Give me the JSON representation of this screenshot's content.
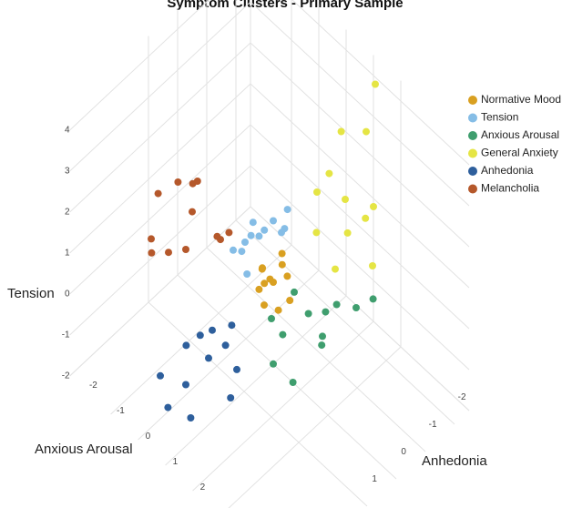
{
  "chart_data": {
    "type": "scatter3d",
    "title": "Symptom Clusters - Primary Sample",
    "xlabel": "Anxious Arousal",
    "ylabel": "Anhedonia",
    "zlabel": "Tension",
    "xticks": [
      -2,
      -1,
      0,
      1,
      2
    ],
    "yticks": [
      -2,
      -1,
      0,
      1
    ],
    "zticks": [
      -2,
      -1,
      0,
      1,
      2,
      3,
      4
    ],
    "series": [
      {
        "name": "Normative Mood",
        "color": "#d9a021",
        "x": [
          0,
          0.3,
          -0.2,
          0.1,
          -0.4,
          0.5,
          0.2,
          -0.1,
          0.4,
          -0.3,
          0,
          0.2
        ],
        "y": [
          0,
          -0.2,
          0.3,
          0.4,
          0,
          -0.1,
          0.3,
          -0.4,
          0.2,
          0.1,
          -0.3,
          0.5
        ],
        "z": [
          0,
          0.2,
          -0.1,
          0.3,
          0.1,
          -0.2,
          0.4,
          0.1,
          -0.3,
          0.2,
          0.5,
          -0.1
        ]
      },
      {
        "name": "Tension",
        "color": "#85bde6",
        "x": [
          -0.2,
          0,
          -0.5,
          0.2,
          -0.3,
          0.1,
          -0.6,
          0.3,
          -0.1,
          -0.4,
          0.2,
          0
        ],
        "y": [
          0.3,
          0,
          0.5,
          -0.2,
          0.8,
          0.4,
          0.2,
          0,
          0.6,
          1,
          -0.3,
          0.9
        ],
        "z": [
          1.2,
          1.5,
          1,
          1.3,
          1.1,
          1.6,
          0.9,
          1.4,
          1.8,
          1.2,
          1.7,
          0.8
        ]
      },
      {
        "name": "Anxious Arousal",
        "color": "#3f9e6e",
        "x": [
          1.5,
          2,
          1.2,
          2.5,
          1.8,
          1,
          2.2,
          1.6,
          2.8,
          1.3,
          2,
          1.7
        ],
        "y": [
          0.2,
          -0.3,
          0.8,
          -0.5,
          0,
          1,
          0.4,
          1.5,
          -0.8,
          0.5,
          1.2,
          -0.2
        ],
        "z": [
          0.3,
          0.5,
          0,
          0.6,
          -0.2,
          0.4,
          0.1,
          0,
          0.8,
          0.9,
          -0.4,
          0.2
        ]
      },
      {
        "name": "General Anxiety",
        "color": "#e5e544",
        "x": [
          0.5,
          0,
          1,
          0.3,
          -0.5,
          0.8,
          0.2,
          1.2,
          -0.3,
          0.6,
          0,
          1.5
        ],
        "y": [
          -2,
          -1.5,
          -2.5,
          -1.2,
          -2.8,
          -1.8,
          -3,
          -1,
          -2.2,
          -2.6,
          -3.5,
          -2
        ],
        "z": [
          1,
          1.2,
          0.8,
          0.6,
          1.5,
          0.5,
          1.8,
          0.4,
          1,
          0.2,
          2.5,
          0
        ]
      },
      {
        "name": "Anhedonia",
        "color": "#2e5f9c",
        "x": [
          0.3,
          0,
          0.6,
          -0.2,
          0.5,
          0.8,
          0.1,
          -0.4,
          1,
          0.2,
          0.4,
          -0.1
        ],
        "y": [
          2.5,
          3,
          2.2,
          2.8,
          3.3,
          2,
          2.6,
          3.5,
          2.4,
          3.8,
          1.8,
          2
        ],
        "z": [
          0,
          -0.5,
          0.3,
          0.2,
          -0.8,
          -0.3,
          0.5,
          -0.2,
          -0.6,
          -0.4,
          0.4,
          0.1
        ]
      },
      {
        "name": "Melancholia",
        "color": "#b5582b",
        "x": [
          -0.3,
          0,
          -0.6,
          0.2,
          -0.1,
          -0.5,
          0.3,
          -0.8,
          0,
          -0.2,
          0.4,
          -0.4
        ],
        "y": [
          2.5,
          3,
          2.2,
          2,
          3.5,
          2.8,
          1.8,
          3.2,
          2.6,
          4,
          2.3,
          3.8
        ],
        "z": [
          3.2,
          2.8,
          3.5,
          2.5,
          3,
          4,
          2.6,
          3.8,
          4.2,
          3.6,
          2.9,
          3
        ]
      }
    ]
  }
}
